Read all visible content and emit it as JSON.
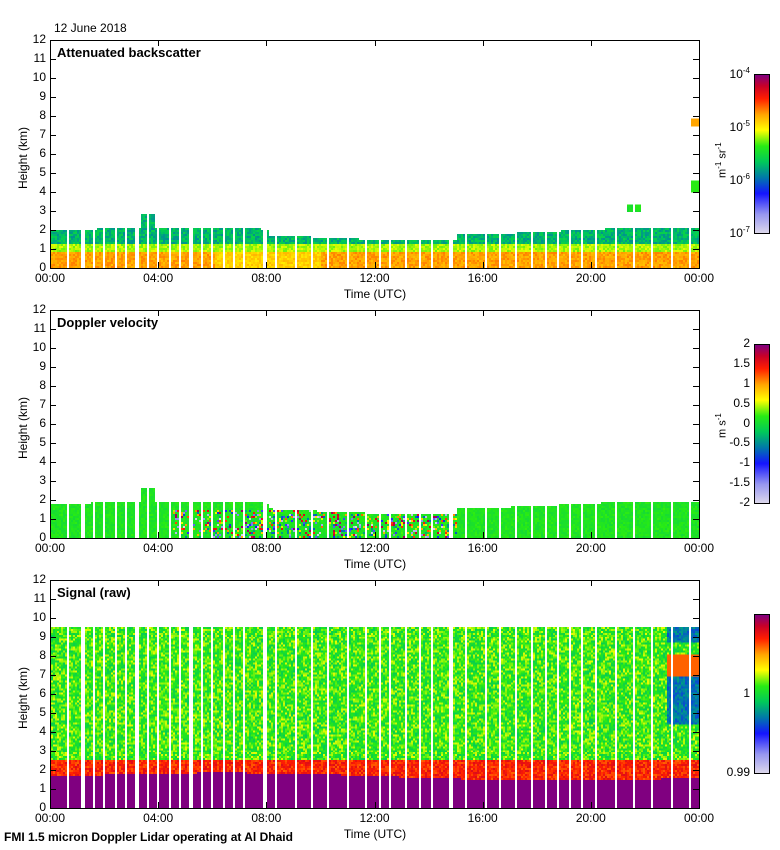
{
  "figure": {
    "date": "12 June 2018",
    "footer": "FMI 1.5 micron Doppler Lidar operating at Al Dhaid"
  },
  "chart_data": [
    {
      "type": "heatmap",
      "title": "Attenuated backscatter",
      "xlabel": "Time (UTC)",
      "ylabel": "Height (km)",
      "xticks": [
        "00:00",
        "04:00",
        "08:00",
        "12:00",
        "16:00",
        "20:00",
        "00:00"
      ],
      "yticks": [
        "0",
        "1",
        "2",
        "3",
        "4",
        "5",
        "6",
        "7",
        "8",
        "9",
        "10",
        "11",
        "12"
      ],
      "ylim": [
        0,
        12
      ],
      "xlim_hours": [
        0,
        24
      ],
      "colorbar": {
        "scale": "log",
        "range": [
          1e-07,
          0.0001
        ],
        "ticks": [
          "10-7",
          "10-6",
          "10-5",
          "10-4"
        ],
        "unit": "m-1 sr-1"
      },
      "description": "Strong backscatter layer (orange/red) 0-1 km all day; green/blue aerosol layer up to ~2 km; top rises ~2.9 km near 03:30; sparse returns near 9.3 km, 7.4 km, 6.2 km around 03:30; elevated layers ~3.2 km near 21:30 and 4-8 km near 23:50",
      "features": [
        {
          "t_start": 0,
          "t_end": 24,
          "h_low": 0,
          "h_high": 1.0,
          "level": "1e-5 to 3e-5"
        },
        {
          "t_start": 0,
          "t_end": 24,
          "h_low": 1.0,
          "h_high": 2.0,
          "level": "1e-6 to 3e-6"
        },
        {
          "t_start": 3.3,
          "t_end": 3.8,
          "h_low": 2.0,
          "h_high": 2.9,
          "level": "1e-6"
        },
        {
          "t_start": 21.3,
          "t_end": 21.8,
          "h_low": 3.0,
          "h_high": 3.4,
          "level": "2e-6"
        },
        {
          "t_start": 23.6,
          "t_end": 24,
          "h_low": 4.0,
          "h_high": 4.7,
          "level": "3e-6"
        },
        {
          "t_start": 23.6,
          "t_end": 24,
          "h_low": 7.5,
          "h_high": 8.0,
          "level": "3e-5"
        }
      ]
    },
    {
      "type": "heatmap",
      "title": "Doppler velocity",
      "xlabel": "Time (UTC)",
      "ylabel": "Height (km)",
      "xticks": [
        "00:00",
        "04:00",
        "08:00",
        "12:00",
        "16:00",
        "20:00",
        "00:00"
      ],
      "yticks": [
        "0",
        "1",
        "2",
        "3",
        "4",
        "5",
        "6",
        "7",
        "8",
        "9",
        "10",
        "11",
        "12"
      ],
      "ylim": [
        0,
        12
      ],
      "xlim_hours": [
        0,
        24
      ],
      "colorbar": {
        "scale": "linear",
        "range": [
          -2,
          2
        ],
        "ticks": [
          "-2",
          "-1.5",
          "-1",
          "-0.5",
          "0",
          "0.5",
          "1",
          "1.5",
          "2"
        ],
        "unit": "m s-1"
      },
      "description": "Mostly near-zero (green) velocities in the boundary layer below ~2 km; strong up/down drafts (red/blue, +/-2 m/s) below ~1.5 km between ~04:30 and ~15:00 due to convective mixing"
    },
    {
      "type": "heatmap",
      "title": "Signal (raw)",
      "xlabel": "Time (UTC)",
      "ylabel": "Height (km)",
      "xticks": [
        "00:00",
        "04:00",
        "08:00",
        "12:00",
        "16:00",
        "20:00",
        "00:00"
      ],
      "yticks": [
        "0",
        "1",
        "2",
        "3",
        "4",
        "5",
        "6",
        "7",
        "8",
        "9",
        "10",
        "11",
        "12"
      ],
      "ylim": [
        0,
        12
      ],
      "xlim_hours": [
        0,
        24
      ],
      "colorbar": {
        "scale": "linear",
        "range": [
          0.99,
          1.01
        ],
        "ticks": [
          "0.99",
          "1"
        ],
        "unit": ""
      },
      "description": "Saturated (purple) below ~1.5-2 km; red/orange transition ~2-2.7 km; noisy green/yellow up to range limit ~9.6 km; blank above 9.6 km"
    }
  ]
}
